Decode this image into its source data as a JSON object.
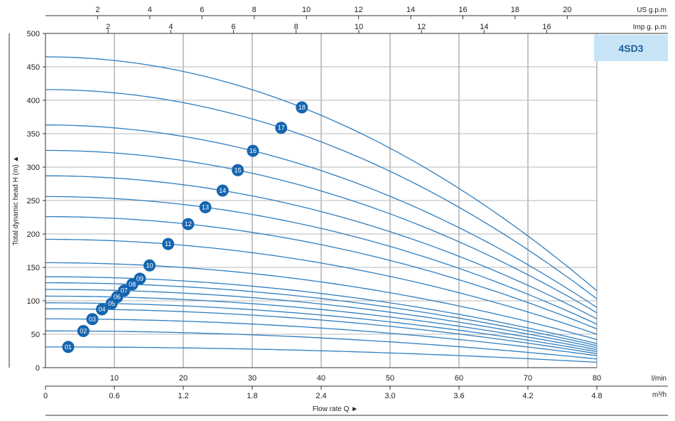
{
  "colors": {
    "curve": "#2f7fc1",
    "badge": "#1565b0",
    "grid": "#b8b8b8",
    "model_box": "#c7e4f7"
  },
  "chart_data": {
    "type": "line",
    "model": "4SD3",
    "ylabel": "Total dynamic head H (m) ▲",
    "xlabel": "Flow rate Q ►",
    "x_primary_unit": "l/min",
    "x_m3h_unit": "m³/h",
    "x_usgpm_unit": "US g.p.m",
    "x_impgpm_unit": "Imp g. p.m",
    "xlim": [
      0,
      80
    ],
    "ylim": [
      0,
      500
    ],
    "x_ticks": [
      10,
      20,
      30,
      40,
      50,
      60,
      70,
      80
    ],
    "y_ticks": [
      0,
      50,
      100,
      150,
      200,
      250,
      300,
      350,
      400,
      450,
      500
    ],
    "m3h_ticks": [
      "0",
      "0.6",
      "1.2",
      "1.8",
      "2.4",
      "3.0",
      "3.6",
      "4.2",
      "4.8"
    ],
    "usgpm_ticks": [
      "2",
      "4",
      "6",
      "8",
      "10",
      "12",
      "14",
      "16",
      "18",
      "20"
    ],
    "impgpm_ticks": [
      "2",
      "4",
      "6",
      "8",
      "10",
      "12",
      "14",
      "16"
    ],
    "grid": true,
    "series": [
      {
        "name": "01",
        "shutoff": 31,
        "end": 8,
        "label_x": 3.3
      },
      {
        "name": "02",
        "shutoff": 55,
        "end": 13,
        "label_x": 5.5
      },
      {
        "name": "03",
        "shutoff": 73,
        "end": 18,
        "label_x": 6.8
      },
      {
        "name": "04",
        "shutoff": 88,
        "end": 21,
        "label_x": 8.2
      },
      {
        "name": "05",
        "shutoff": 97,
        "end": 24,
        "label_x": 9.6
      },
      {
        "name": "06",
        "shutoff": 107,
        "end": 27,
        "label_x": 10.4
      },
      {
        "name": "07",
        "shutoff": 117,
        "end": 30,
        "label_x": 11.4
      },
      {
        "name": "08",
        "shutoff": 127,
        "end": 33,
        "label_x": 12.6
      },
      {
        "name": "09",
        "shutoff": 136,
        "end": 36,
        "label_x": 13.7
      },
      {
        "name": "10",
        "shutoff": 157,
        "end": 42,
        "label_x": 15.1
      },
      {
        "name": "11",
        "shutoff": 192,
        "end": 50,
        "label_x": 17.8
      },
      {
        "name": "12",
        "shutoff": 226,
        "end": 58,
        "label_x": 20.7
      },
      {
        "name": "13",
        "shutoff": 256,
        "end": 65,
        "label_x": 23.2
      },
      {
        "name": "14",
        "shutoff": 287,
        "end": 73,
        "label_x": 25.7
      },
      {
        "name": "15",
        "shutoff": 325,
        "end": 82,
        "label_x": 27.9
      },
      {
        "name": "16",
        "shutoff": 363,
        "end": 90,
        "label_x": 30.1
      },
      {
        "name": "17",
        "shutoff": 416,
        "end": 103,
        "label_x": 34.2
      },
      {
        "name": "18",
        "shutoff": 465,
        "end": 115,
        "label_x": 37.2
      }
    ]
  }
}
